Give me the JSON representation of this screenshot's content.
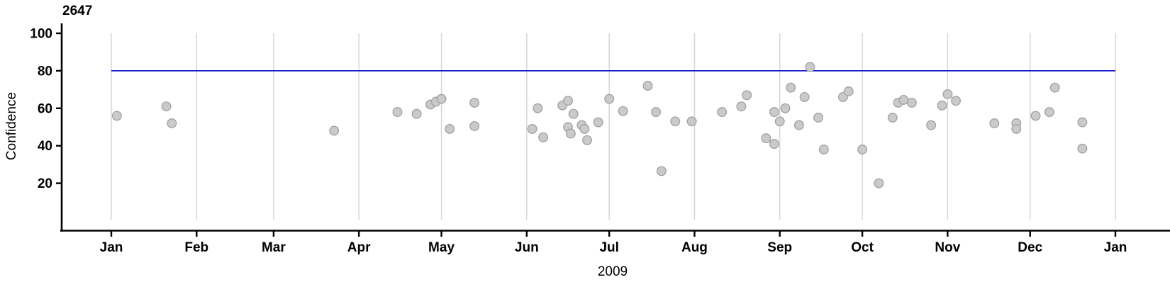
{
  "chart_data": {
    "type": "scatter",
    "title": "2647",
    "xlabel": "2009",
    "ylabel": "Confidence",
    "x_tick_labels": [
      "Jan",
      "Feb",
      "Mar",
      "Apr",
      "May",
      "Jun",
      "Jul",
      "Aug",
      "Sep",
      "Oct",
      "Nov",
      "Dec",
      "Jan"
    ],
    "x_tick_days": [
      0,
      31,
      59,
      90,
      120,
      151,
      181,
      212,
      243,
      273,
      304,
      334,
      365
    ],
    "x_range_days": [
      0,
      365
    ],
    "y_ticks": [
      20,
      40,
      60,
      80,
      100
    ],
    "y_range": [
      0,
      100
    ],
    "grid": "vertical-monthly",
    "legend": "none",
    "reference_line": {
      "y": 80,
      "color": "#1a1acd"
    },
    "colors": {
      "point_fill": "#cacaca",
      "point_edge": "#a0a0a0",
      "gridline": "#d4d4d4",
      "axis": "#000000",
      "reference": "#1a1acd"
    },
    "points_format": "[day_of_year_2009, confidence]",
    "points": [
      [
        2,
        56
      ],
      [
        20,
        61
      ],
      [
        22,
        52
      ],
      [
        81,
        48
      ],
      [
        104,
        58
      ],
      [
        111,
        57
      ],
      [
        116,
        62
      ],
      [
        118,
        63.5
      ],
      [
        120,
        65
      ],
      [
        123,
        49
      ],
      [
        132,
        63
      ],
      [
        132,
        50.5
      ],
      [
        153,
        49
      ],
      [
        155,
        60
      ],
      [
        157,
        44.5
      ],
      [
        164,
        61.5
      ],
      [
        166,
        64
      ],
      [
        168,
        57
      ],
      [
        166,
        50
      ],
      [
        167,
        46.5
      ],
      [
        171,
        51
      ],
      [
        172,
        49
      ],
      [
        173,
        43
      ],
      [
        177,
        52.5
      ],
      [
        181,
        65
      ],
      [
        186,
        58.5
      ],
      [
        195,
        72
      ],
      [
        198,
        58
      ],
      [
        200,
        26.5
      ],
      [
        205,
        53
      ],
      [
        211,
        53
      ],
      [
        222,
        58
      ],
      [
        229,
        61
      ],
      [
        231,
        67
      ],
      [
        238,
        44
      ],
      [
        241,
        58
      ],
      [
        241,
        41
      ],
      [
        243,
        53
      ],
      [
        245,
        60
      ],
      [
        247,
        71
      ],
      [
        250,
        51
      ],
      [
        252,
        66
      ],
      [
        254,
        82
      ],
      [
        257,
        55
      ],
      [
        259,
        38
      ],
      [
        266,
        66
      ],
      [
        268,
        69
      ],
      [
        273,
        38
      ],
      [
        279,
        20
      ],
      [
        284,
        55
      ],
      [
        286,
        63
      ],
      [
        288,
        64.5
      ],
      [
        291,
        63
      ],
      [
        298,
        51
      ],
      [
        302,
        61.5
      ],
      [
        304,
        67.5
      ],
      [
        307,
        64
      ],
      [
        321,
        52
      ],
      [
        329,
        52
      ],
      [
        329,
        49
      ],
      [
        336,
        56
      ],
      [
        341,
        58
      ],
      [
        343,
        71
      ],
      [
        353,
        52.5
      ],
      [
        353,
        38.5
      ]
    ]
  }
}
